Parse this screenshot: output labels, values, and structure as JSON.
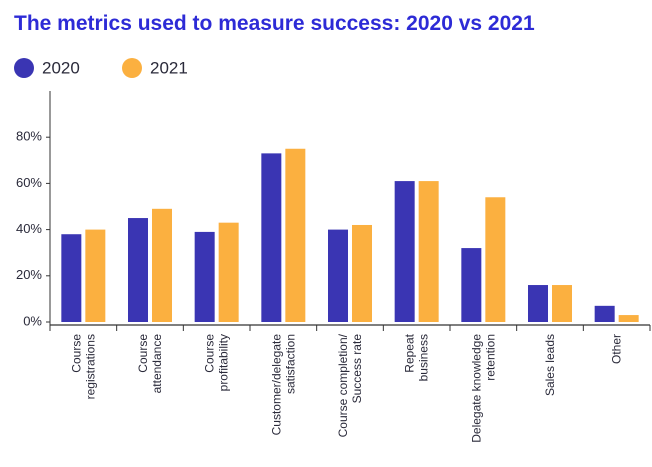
{
  "chart_data": {
    "type": "bar",
    "title": "The metrics used to measure success: 2020 vs 2021",
    "categories": [
      [
        "Course",
        "registrations"
      ],
      [
        "Course",
        "attendance"
      ],
      [
        "Course",
        "profitability"
      ],
      [
        "Customer/delegate",
        "satisfaction"
      ],
      [
        "Course completion/",
        "Success rate"
      ],
      [
        "Repeat",
        "business"
      ],
      [
        "Delegate knowledge",
        "retention"
      ],
      [
        "Sales leads"
      ],
      [
        "Other"
      ]
    ],
    "series": [
      {
        "name": "2020",
        "color": "#3a35b3",
        "values": [
          38,
          45,
          39,
          73,
          40,
          61,
          32,
          16,
          7
        ]
      },
      {
        "name": "2021",
        "color": "#fbb040",
        "values": [
          40,
          49,
          43,
          75,
          42,
          61,
          54,
          16,
          3
        ]
      }
    ],
    "ylim": [
      0,
      100
    ],
    "yticks": [
      {
        "value": 0,
        "label": "0%"
      },
      {
        "value": 20,
        "label": "20%"
      },
      {
        "value": 40,
        "label": "40%"
      },
      {
        "value": 60,
        "label": "60%"
      },
      {
        "value": 80,
        "label": "80%"
      }
    ],
    "grid": false
  }
}
